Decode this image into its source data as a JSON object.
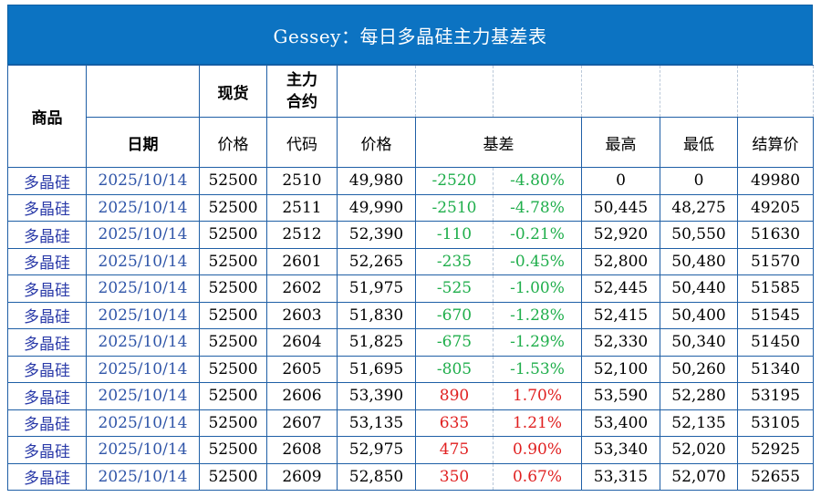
{
  "title": "Gessey：每日多晶硅主力基差表",
  "header": {
    "product": "商品",
    "spot": "现货",
    "main_contract": "主力\n合约",
    "date": "日期",
    "spot_price": "价格",
    "contract_code": "代码",
    "contract_price": "价格",
    "basis": "基差",
    "high": "最高",
    "low": "最低",
    "settle": "结算价"
  },
  "rows": [
    {
      "product": "多晶硅",
      "date": "2025/10/14",
      "spot": "52500",
      "code": "2510",
      "price": "49,980",
      "basis": "-2520",
      "basis_pct": "-4.80%",
      "sign": "neg",
      "high": "0",
      "low": "0",
      "settle": "49980"
    },
    {
      "product": "多晶硅",
      "date": "2025/10/14",
      "spot": "52500",
      "code": "2511",
      "price": "49,990",
      "basis": "-2510",
      "basis_pct": "-4.78%",
      "sign": "neg",
      "high": "50,445",
      "low": "48,275",
      "settle": "49205"
    },
    {
      "product": "多晶硅",
      "date": "2025/10/14",
      "spot": "52500",
      "code": "2512",
      "price": "52,390",
      "basis": "-110",
      "basis_pct": "-0.21%",
      "sign": "neg",
      "high": "52,920",
      "low": "50,550",
      "settle": "51630"
    },
    {
      "product": "多晶硅",
      "date": "2025/10/14",
      "spot": "52500",
      "code": "2601",
      "price": "52,265",
      "basis": "-235",
      "basis_pct": "-0.45%",
      "sign": "neg",
      "high": "52,800",
      "low": "50,480",
      "settle": "51570"
    },
    {
      "product": "多晶硅",
      "date": "2025/10/14",
      "spot": "52500",
      "code": "2602",
      "price": "51,975",
      "basis": "-525",
      "basis_pct": "-1.00%",
      "sign": "neg",
      "high": "52,445",
      "low": "50,440",
      "settle": "51585"
    },
    {
      "product": "多晶硅",
      "date": "2025/10/14",
      "spot": "52500",
      "code": "2603",
      "price": "51,830",
      "basis": "-670",
      "basis_pct": "-1.28%",
      "sign": "neg",
      "high": "52,415",
      "low": "50,400",
      "settle": "51545"
    },
    {
      "product": "多晶硅",
      "date": "2025/10/14",
      "spot": "52500",
      "code": "2604",
      "price": "51,825",
      "basis": "-675",
      "basis_pct": "-1.29%",
      "sign": "neg",
      "high": "52,330",
      "low": "50,340",
      "settle": "51450"
    },
    {
      "product": "多晶硅",
      "date": "2025/10/14",
      "spot": "52500",
      "code": "2605",
      "price": "51,695",
      "basis": "-805",
      "basis_pct": "-1.53%",
      "sign": "neg",
      "high": "52,100",
      "low": "50,260",
      "settle": "51340"
    },
    {
      "product": "多晶硅",
      "date": "2025/10/14",
      "spot": "52500",
      "code": "2606",
      "price": "53,390",
      "basis": "890",
      "basis_pct": "1.70%",
      "sign": "pos",
      "high": "53,590",
      "low": "52,280",
      "settle": "53195"
    },
    {
      "product": "多晶硅",
      "date": "2025/10/14",
      "spot": "52500",
      "code": "2607",
      "price": "53,135",
      "basis": "635",
      "basis_pct": "1.21%",
      "sign": "pos",
      "high": "53,400",
      "low": "52,135",
      "settle": "53105"
    },
    {
      "product": "多晶硅",
      "date": "2025/10/14",
      "spot": "52500",
      "code": "2608",
      "price": "52,975",
      "basis": "475",
      "basis_pct": "0.90%",
      "sign": "pos",
      "high": "53,340",
      "low": "52,020",
      "settle": "52925"
    },
    {
      "product": "多晶硅",
      "date": "2025/10/14",
      "spot": "52500",
      "code": "2609",
      "price": "52,850",
      "basis": "350",
      "basis_pct": "0.67%",
      "sign": "pos",
      "high": "53,315",
      "low": "52,070",
      "settle": "52655"
    }
  ],
  "colors": {
    "title_bg": "#0c73c2",
    "negative": "#1fae4b",
    "positive": "#e02020",
    "product_text": "#2a3aa8",
    "date_text": "#2f55a8"
  }
}
